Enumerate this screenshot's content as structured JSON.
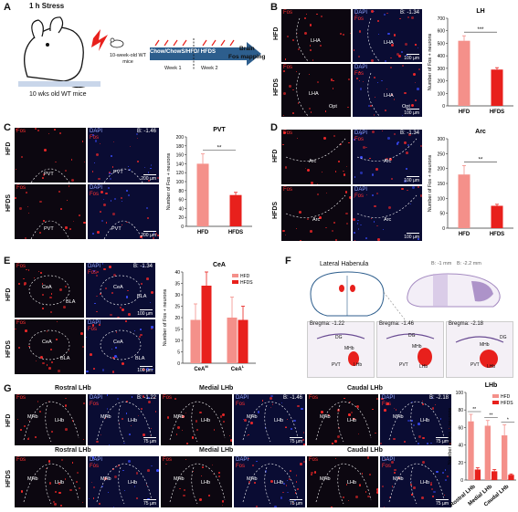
{
  "panels": {
    "A": {
      "label": "A",
      "stress": "1 h Stress",
      "mice_young": "10-week-old WT mice",
      "mice_label": "10 wks old WT mice",
      "diet": "Chow/ChowS/HFD/ HFDS",
      "week1": "Week 1",
      "week2": "Week 2",
      "brain": "Brain",
      "fos_mapping": "Fos mapping"
    },
    "B": {
      "label": "B",
      "bregma": "B: -1.34",
      "rows": [
        "HFD",
        "HFDS"
      ],
      "regions": [
        "LHA",
        "Opt"
      ],
      "scale": "100 µm"
    },
    "C": {
      "label": "C",
      "bregma": "B: -1.46",
      "rows": [
        "HFD",
        "HFDS"
      ],
      "region": "PVT",
      "scale": "200 µm"
    },
    "D": {
      "label": "D",
      "bregma": "B: -1.34",
      "rows": [
        "HFD",
        "HFDS"
      ],
      "region": "Arc",
      "scale": "100 µm"
    },
    "E": {
      "label": "E",
      "bregma": "B: -1.34",
      "rows": [
        "HFD",
        "HFDS"
      ],
      "regions": [
        "CeA",
        "BLA"
      ],
      "scale": "100 µm"
    },
    "F": {
      "label": "F",
      "title": "Lateral Habenula",
      "b1": "B: -1 mm",
      "b2": "B: -2.2 mm",
      "sections": [
        {
          "bregma": "Bregma: -1.22",
          "labels": [
            "DG",
            "MHb",
            "PVT",
            "LHb"
          ]
        },
        {
          "bregma": "Bregma: -1.46",
          "labels": [
            "DG",
            "MHb",
            "PVT",
            "LHb"
          ]
        },
        {
          "bregma": "Bregma: -2.18",
          "labels": [
            "DG",
            "MHb",
            "PVT",
            "LHb"
          ]
        }
      ]
    },
    "G": {
      "label": "G",
      "rows": [
        "HFD",
        "HFDS"
      ],
      "sections": [
        "Rostral LHb",
        "Medial LHb",
        "Caudal LHb"
      ],
      "bregmas": [
        "B: -1.22",
        "B: -1.46",
        "B: -2.18"
      ],
      "regions": [
        "MHb",
        "LHb"
      ],
      "scale": "75 µm"
    },
    "channels": {
      "fos": "Fos",
      "dapi": "DAPI"
    }
  },
  "colors": {
    "hfd": "#f4908a",
    "hfds": "#e8201c",
    "fos": "#ff3030",
    "dapi": "#0a0c33"
  },
  "chart_data": [
    {
      "id": "B",
      "type": "bar",
      "title": "LH",
      "categories": [
        "HFD",
        "HFDS"
      ],
      "values": [
        520,
        290
      ],
      "errors": [
        40,
        15
      ],
      "ylabel": "Number of Fos + neurons",
      "ylim": [
        0,
        700
      ],
      "yticks": [
        0,
        100,
        200,
        300,
        400,
        500,
        600,
        700
      ],
      "sig": "***"
    },
    {
      "id": "C",
      "type": "bar",
      "title": "PVT",
      "categories": [
        "HFD",
        "HFDS"
      ],
      "values": [
        140,
        70
      ],
      "errors": [
        22,
        6
      ],
      "ylabel": "Number of Fos + neurons",
      "ylim": [
        0,
        200
      ],
      "yticks": [
        0,
        20,
        40,
        60,
        80,
        100,
        120,
        140,
        160,
        180,
        200
      ],
      "sig": "**"
    },
    {
      "id": "D",
      "type": "bar",
      "title": "Arc",
      "categories": [
        "HFD",
        "HFDS"
      ],
      "values": [
        180,
        75
      ],
      "errors": [
        30,
        5
      ],
      "ylabel": "Number of Fos + neurons",
      "ylim": [
        0,
        300
      ],
      "yticks": [
        0,
        50,
        100,
        150,
        200,
        250,
        300
      ],
      "sig": "**"
    },
    {
      "id": "E",
      "type": "bar",
      "title": "CeA",
      "categories": [
        "CeA",
        "CeA"
      ],
      "category_sup": [
        "M",
        "L"
      ],
      "series": [
        {
          "name": "HFD",
          "values": [
            19,
            20
          ],
          "errors": [
            7,
            9
          ]
        },
        {
          "name": "HFDS",
          "values": [
            34,
            19
          ],
          "errors": [
            6,
            6
          ]
        }
      ],
      "ylabel": "Number of Fos + neurons",
      "ylim": [
        0,
        40
      ],
      "yticks": [
        0,
        5,
        10,
        15,
        20,
        25,
        30,
        35,
        40
      ],
      "legend": "top-right"
    },
    {
      "id": "G",
      "type": "bar",
      "title": "LHb",
      "categories": [
        "Rostral LHb",
        "Medial LHb",
        "Caudal LHb"
      ],
      "series": [
        {
          "name": "HFD",
          "values": [
            67,
            62,
            51
          ],
          "errors": [
            8,
            6,
            12
          ]
        },
        {
          "name": "HFDS",
          "values": [
            12,
            10,
            6
          ],
          "errors": [
            2,
            2,
            1
          ]
        }
      ],
      "ylabel": "Number of Fos + neurons",
      "ylim": [
        0,
        100
      ],
      "yticks": [
        0,
        20,
        40,
        60,
        80,
        100
      ],
      "sig": [
        "**",
        "**",
        "*"
      ],
      "legend": "top-right"
    }
  ]
}
